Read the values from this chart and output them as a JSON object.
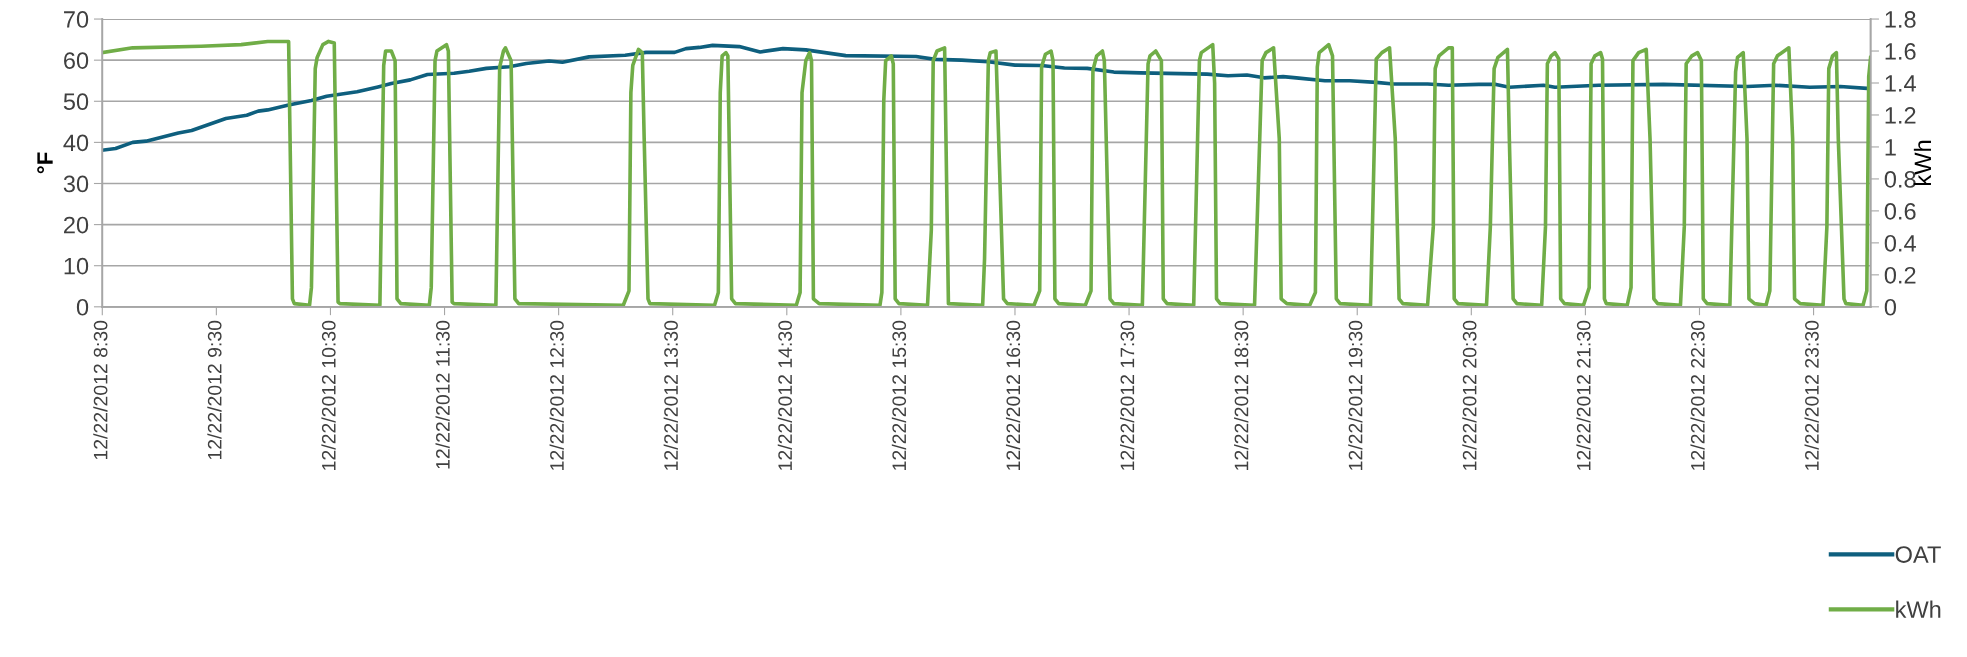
{
  "chart_data": {
    "type": "line",
    "ylabel": "°F",
    "y2label": "kWh",
    "xlim": [
      "2012-12-22T08:30",
      "2012-12-23T00:00"
    ],
    "xticks": [
      {
        "value": "2012-12-22T08:30",
        "label": "12/22/2012 8:30"
      },
      {
        "value": "2012-12-22T09:30",
        "label": "12/22/2012 9:30"
      },
      {
        "value": "2012-12-22T10:30",
        "label": "12/22/2012 10:30"
      },
      {
        "value": "2012-12-22T11:30",
        "label": "12/22/2012 11:30"
      },
      {
        "value": "2012-12-22T12:30",
        "label": "12/22/2012 12:30"
      },
      {
        "value": "2012-12-22T13:30",
        "label": "12/22/2012 13:30"
      },
      {
        "value": "2012-12-22T14:30",
        "label": "12/22/2012 14:30"
      },
      {
        "value": "2012-12-22T15:30",
        "label": "12/22/2012 15:30"
      },
      {
        "value": "2012-12-22T16:30",
        "label": "12/22/2012 16:30"
      },
      {
        "value": "2012-12-22T17:30",
        "label": "12/22/2012 17:30"
      },
      {
        "value": "2012-12-22T18:30",
        "label": "12/22/2012 18:30"
      },
      {
        "value": "2012-12-22T19:30",
        "label": "12/22/2012 19:30"
      },
      {
        "value": "2012-12-22T20:30",
        "label": "12/22/2012 20:30"
      },
      {
        "value": "2012-12-22T21:30",
        "label": "12/22/2012 21:30"
      },
      {
        "value": "2012-12-22T22:30",
        "label": "12/22/2012 22:30"
      },
      {
        "value": "2012-12-22T23:30",
        "label": "12/22/2012 23:30"
      }
    ],
    "ylim": [
      0,
      70
    ],
    "yticks": [
      0,
      10,
      20,
      30,
      40,
      50,
      60,
      70
    ],
    "y2lim": [
      0,
      1.8
    ],
    "y2ticks": [
      0,
      0.2,
      0.4,
      0.6,
      0.8,
      1,
      1.2,
      1.4,
      1.6,
      1.8
    ],
    "grid": "y",
    "legend": "bottom right",
    "marker": "none",
    "line_style": "solid",
    "series": [
      {
        "name": "OAT",
        "color": "#0e5f7e",
        "x": [
          "2012-12-22T08:30",
          "2012-12-22T08:37",
          "2012-12-22T08:46",
          "2012-12-22T08:53",
          "2012-12-22T09:10",
          "2012-12-22T09:17",
          "2012-12-22T09:35",
          "2012-12-22T09:46",
          "2012-12-22T09:52",
          "2012-12-22T09:57",
          "2012-12-22T10:08",
          "2012-12-22T10:20",
          "2012-12-22T10:28",
          "2012-12-22T10:44",
          "2012-12-22T10:55",
          "2012-12-22T11:02",
          "2012-12-22T11:12",
          "2012-12-22T11:21",
          "2012-12-22T11:35",
          "2012-12-22T11:43",
          "2012-12-22T11:52",
          "2012-12-22T12:04",
          "2012-12-22T12:13",
          "2012-12-22T12:25",
          "2012-12-22T12:32",
          "2012-12-22T12:46",
          "2012-12-22T13:05",
          "2012-12-22T13:16",
          "2012-12-22T13:31",
          "2012-12-22T13:37",
          "2012-12-22T13:44",
          "2012-12-22T13:51",
          "2012-12-22T14:05",
          "2012-12-22T14:16",
          "2012-12-22T14:28",
          "2012-12-22T14:40",
          "2012-12-22T15:01",
          "2012-12-22T15:38",
          "2012-12-22T15:48",
          "2012-12-22T16:02",
          "2012-12-22T16:16",
          "2012-12-22T16:30",
          "2012-12-22T16:44",
          "2012-12-22T16:56",
          "2012-12-22T17:08",
          "2012-12-22T17:22",
          "2012-12-22T17:36",
          "2012-12-22T18:11",
          "2012-12-22T18:22",
          "2012-12-22T18:32",
          "2012-12-22T18:41",
          "2012-12-22T18:51",
          "2012-12-22T18:58",
          "2012-12-22T19:13",
          "2012-12-22T19:26",
          "2012-12-22T19:40",
          "2012-12-22T19:49",
          "2012-12-22T20:07",
          "2012-12-22T20:18",
          "2012-12-22T20:34",
          "2012-12-22T20:43",
          "2012-12-22T20:50",
          "2012-12-22T21:08",
          "2012-12-22T21:14",
          "2012-12-22T21:37",
          "2012-12-22T22:11",
          "2012-12-22T22:55",
          "2012-12-22T23:10",
          "2012-12-22T23:28",
          "2012-12-22T23:44",
          "2012-12-22T23:59"
        ],
        "values": [
          38.1,
          38.5,
          40,
          40.3,
          42.3,
          42.9,
          45.8,
          46.6,
          47.6,
          47.9,
          49.1,
          50.2,
          51.2,
          52.3,
          53.5,
          54.3,
          55.2,
          56.5,
          56.8,
          57.3,
          58,
          58.4,
          59.2,
          59.8,
          59.5,
          60.8,
          61.2,
          61.9,
          61.9,
          62.8,
          63.1,
          63.6,
          63.3,
          62,
          62.8,
          62.5,
          61.1,
          60.9,
          60.2,
          60,
          59.6,
          58.8,
          58.7,
          58.1,
          58,
          57.1,
          56.9,
          56.6,
          56.2,
          56.4,
          55.7,
          56,
          55.7,
          55,
          55,
          54.6,
          54.2,
          54.2,
          53.9,
          54.1,
          54.1,
          53.4,
          53.9,
          53.4,
          53.9,
          54.1,
          53.6,
          53.9,
          53.4,
          53.6,
          53.1
        ]
      },
      {
        "name": "kWh",
        "color": "#70ad47",
        "axis": "y2",
        "x": [
          "2012-12-22T08:30",
          "2012-12-22T08:46",
          "2012-12-22T09:22",
          "2012-12-22T09:43",
          "2012-12-22T09:57",
          "2012-12-22T10:08",
          "2012-12-22T10:10",
          "2012-12-22T10:11",
          "2012-12-22T10:19",
          "2012-12-22T10:20",
          "2012-12-22T10:22",
          "2012-12-22T10:23",
          "2012-12-22T10:26",
          "2012-12-22T10:29",
          "2012-12-22T10:32",
          "2012-12-22T10:34",
          "2012-12-22T10:35",
          "2012-12-22T10:56",
          "2012-12-22T10:58",
          "2012-12-22T10:59",
          "2012-12-22T11:02",
          "2012-12-22T11:04",
          "2012-12-22T11:05",
          "2012-12-22T11:07",
          "2012-12-22T11:22",
          "2012-12-22T11:23",
          "2012-12-22T11:25",
          "2012-12-22T11:26",
          "2012-12-22T11:31",
          "2012-12-22T11:32",
          "2012-12-22T11:34",
          "2012-12-22T11:35",
          "2012-12-22T11:57",
          "2012-12-22T11:59",
          "2012-12-22T12:01",
          "2012-12-22T12:02",
          "2012-12-22T12:05",
          "2012-12-22T12:07",
          "2012-12-22T12:09",
          "2012-12-22T13:04",
          "2012-12-22T13:07",
          "2012-12-22T13:08",
          "2012-12-22T13:09",
          "2012-12-22T13:12",
          "2012-12-22T13:14",
          "2012-12-22T13:15",
          "2012-12-22T13:17",
          "2012-12-22T13:18",
          "2012-12-22T13:52",
          "2012-12-22T13:54",
          "2012-12-22T13:55",
          "2012-12-22T13:56",
          "2012-12-22T13:58",
          "2012-12-22T13:59",
          "2012-12-22T14:01",
          "2012-12-22T14:03",
          "2012-12-22T14:35",
          "2012-12-22T14:37",
          "2012-12-22T14:38",
          "2012-12-22T14:40",
          "2012-12-22T14:42",
          "2012-12-22T14:43",
          "2012-12-22T14:44",
          "2012-12-22T14:47",
          "2012-12-22T15:19",
          "2012-12-22T15:20",
          "2012-12-22T15:21",
          "2012-12-22T15:22",
          "2012-12-22T15:25",
          "2012-12-22T15:26",
          "2012-12-22T15:27",
          "2012-12-22T15:29",
          "2012-12-22T15:44",
          "2012-12-22T15:46",
          "2012-12-22T15:47",
          "2012-12-22T15:49",
          "2012-12-22T15:53",
          "2012-12-22T15:55",
          "2012-12-22T16:13",
          "2012-12-22T16:14",
          "2012-12-22T16:16",
          "2012-12-22T16:17",
          "2012-12-22T16:20",
          "2012-12-22T16:24",
          "2012-12-22T16:26",
          "2012-12-22T16:40",
          "2012-12-22T16:43",
          "2012-12-22T16:44",
          "2012-12-22T16:46",
          "2012-12-22T16:49",
          "2012-12-22T16:50",
          "2012-12-22T16:51",
          "2012-12-22T16:53",
          "2012-12-22T17:07",
          "2012-12-22T17:10",
          "2012-12-22T17:11",
          "2012-12-22T17:13",
          "2012-12-22T17:16",
          "2012-12-22T17:17",
          "2012-12-22T17:20",
          "2012-12-22T17:22",
          "2012-12-22T17:37",
          "2012-12-22T17:40",
          "2012-12-22T17:41",
          "2012-12-22T17:44",
          "2012-12-22T17:47",
          "2012-12-22T17:48",
          "2012-12-22T17:50",
          "2012-12-22T18:04",
          "2012-12-22T18:07",
          "2012-12-22T18:08",
          "2012-12-22T18:14",
          "2012-12-22T18:15",
          "2012-12-22T18:16",
          "2012-12-22T18:18",
          "2012-12-22T18:36",
          "2012-12-22T18:40",
          "2012-12-22T18:42",
          "2012-12-22T18:46",
          "2012-12-22T18:49",
          "2012-12-22T18:50",
          "2012-12-22T18:53",
          "2012-12-22T19:05",
          "2012-12-22T19:08",
          "2012-12-22T19:09",
          "2012-12-22T19:10",
          "2012-12-22T19:15",
          "2012-12-22T19:17",
          "2012-12-22T19:19",
          "2012-12-22T19:21",
          "2012-12-22T19:37",
          "2012-12-22T19:38",
          "2012-12-22T19:40",
          "2012-12-22T19:43",
          "2012-12-22T19:47",
          "2012-12-22T19:50",
          "2012-12-22T19:52",
          "2012-12-22T19:54",
          "2012-12-22T20:07",
          "2012-12-22T20:10",
          "2012-12-22T20:11",
          "2012-12-22T20:13",
          "2012-12-22T20:18",
          "2012-12-22T20:20",
          "2012-12-22T20:21",
          "2012-12-22T20:23",
          "2012-12-22T20:38",
          "2012-12-22T20:40",
          "2012-12-22T20:42",
          "2012-12-22T20:44",
          "2012-12-22T20:49",
          "2012-12-22T20:50",
          "2012-12-22T20:52",
          "2012-12-22T20:54",
          "2012-12-22T21:07",
          "2012-12-22T21:09",
          "2012-12-22T21:10",
          "2012-12-22T21:12",
          "2012-12-22T21:14",
          "2012-12-22T21:16",
          "2012-12-22T21:17",
          "2012-12-22T21:19",
          "2012-12-22T21:29",
          "2012-12-22T21:32",
          "2012-12-22T21:33",
          "2012-12-22T21:35",
          "2012-12-22T21:38",
          "2012-12-22T21:39",
          "2012-12-22T21:40",
          "2012-12-22T21:41",
          "2012-12-22T21:52",
          "2012-12-22T21:54",
          "2012-12-22T21:55",
          "2012-12-22T21:58",
          "2012-12-22T22:02",
          "2012-12-22T22:04",
          "2012-12-22T22:06",
          "2012-12-22T22:08",
          "2012-12-22T22:20",
          "2012-12-22T22:22",
          "2012-12-22T22:23",
          "2012-12-22T22:26",
          "2012-12-22T22:29",
          "2012-12-22T22:31",
          "2012-12-22T22:32",
          "2012-12-22T22:34",
          "2012-12-22T22:46",
          "2012-12-22T22:47",
          "2012-12-22T22:49",
          "2012-12-22T22:50",
          "2012-12-22T22:53",
          "2012-12-22T22:55",
          "2012-12-22T22:56",
          "2012-12-22T22:59",
          "2012-12-22T23:05",
          "2012-12-22T23:07",
          "2012-12-22T23:09",
          "2012-12-22T23:11",
          "2012-12-22T23:17",
          "2012-12-22T23:19",
          "2012-12-22T23:20",
          "2012-12-22T23:23",
          "2012-12-22T23:35",
          "2012-12-22T23:37",
          "2012-12-22T23:38",
          "2012-12-22T23:40",
          "2012-12-22T23:42",
          "2012-12-22T23:43",
          "2012-12-22T23:46",
          "2012-12-22T23:47",
          "2012-12-22T23:56",
          "2012-12-22T23:58",
          "2012-12-22T23:59",
          "2012-12-23T00:00"
        ],
        "values": [
          1.59,
          1.62,
          1.63,
          1.64,
          1.66,
          1.66,
          0.05,
          0.02,
          0.01,
          0.12,
          1.49,
          1.56,
          1.64,
          1.66,
          1.65,
          0.03,
          0.02,
          0.01,
          1.51,
          1.6,
          1.6,
          1.54,
          0.05,
          0.02,
          0.01,
          0.12,
          1.54,
          1.6,
          1.64,
          1.6,
          0.03,
          0.02,
          0.01,
          1.5,
          1.6,
          1.62,
          1.54,
          0.05,
          0.02,
          0.01,
          0.1,
          1.34,
          1.51,
          1.61,
          1.59,
          1.05,
          0.05,
          0.02,
          0.01,
          0.09,
          1.34,
          1.57,
          1.59,
          1.57,
          0.05,
          0.02,
          0.01,
          0.09,
          1.34,
          1.54,
          1.59,
          1.54,
          0.05,
          0.02,
          0.01,
          0.09,
          1.29,
          1.54,
          1.57,
          1.52,
          0.05,
          0.02,
          0.01,
          0.48,
          1.54,
          1.6,
          1.62,
          0.02,
          0.01,
          0.3,
          1.54,
          1.59,
          1.6,
          0.05,
          0.02,
          0.01,
          0.1,
          1.5,
          1.58,
          1.6,
          1.54,
          0.05,
          0.02,
          0.01,
          0.1,
          1.48,
          1.57,
          1.6,
          1.54,
          0.05,
          0.02,
          0.01,
          1.52,
          1.57,
          1.6,
          1.54,
          0.05,
          0.02,
          0.01,
          1.54,
          1.59,
          1.64,
          1.4,
          0.05,
          0.02,
          0.01,
          1.54,
          1.59,
          1.62,
          1.05,
          0.05,
          0.02,
          0.01,
          0.09,
          1.5,
          1.59,
          1.64,
          1.57,
          0.05,
          0.02,
          0.01,
          0.5,
          1.55,
          1.59,
          1.62,
          1.05,
          0.05,
          0.02,
          0.01,
          0.5,
          1.49,
          1.57,
          1.62,
          1.62,
          0.05,
          0.02,
          0.01,
          0.5,
          1.49,
          1.56,
          1.61,
          1.05,
          0.05,
          0.02,
          0.01,
          0.5,
          1.52,
          1.57,
          1.59,
          1.55,
          0.05,
          0.02,
          0.01,
          0.12,
          1.52,
          1.57,
          1.59,
          1.55,
          0.05,
          0.02,
          0.01,
          0.12,
          1.54,
          1.59,
          1.61,
          1.05,
          0.05,
          0.02,
          0.01,
          0.5,
          1.52,
          1.57,
          1.59,
          1.54,
          0.05,
          0.02,
          0.01,
          0.5,
          1.47,
          1.56,
          1.59,
          1.05,
          0.05,
          0.02,
          0.01,
          0.1,
          1.52,
          1.57,
          1.62,
          1.05,
          0.05,
          0.02,
          0.01,
          0.5,
          1.49,
          1.57,
          1.59,
          1.05,
          0.05,
          0.02,
          0.01,
          0.1,
          1.44,
          1.56
        ]
      }
    ]
  }
}
